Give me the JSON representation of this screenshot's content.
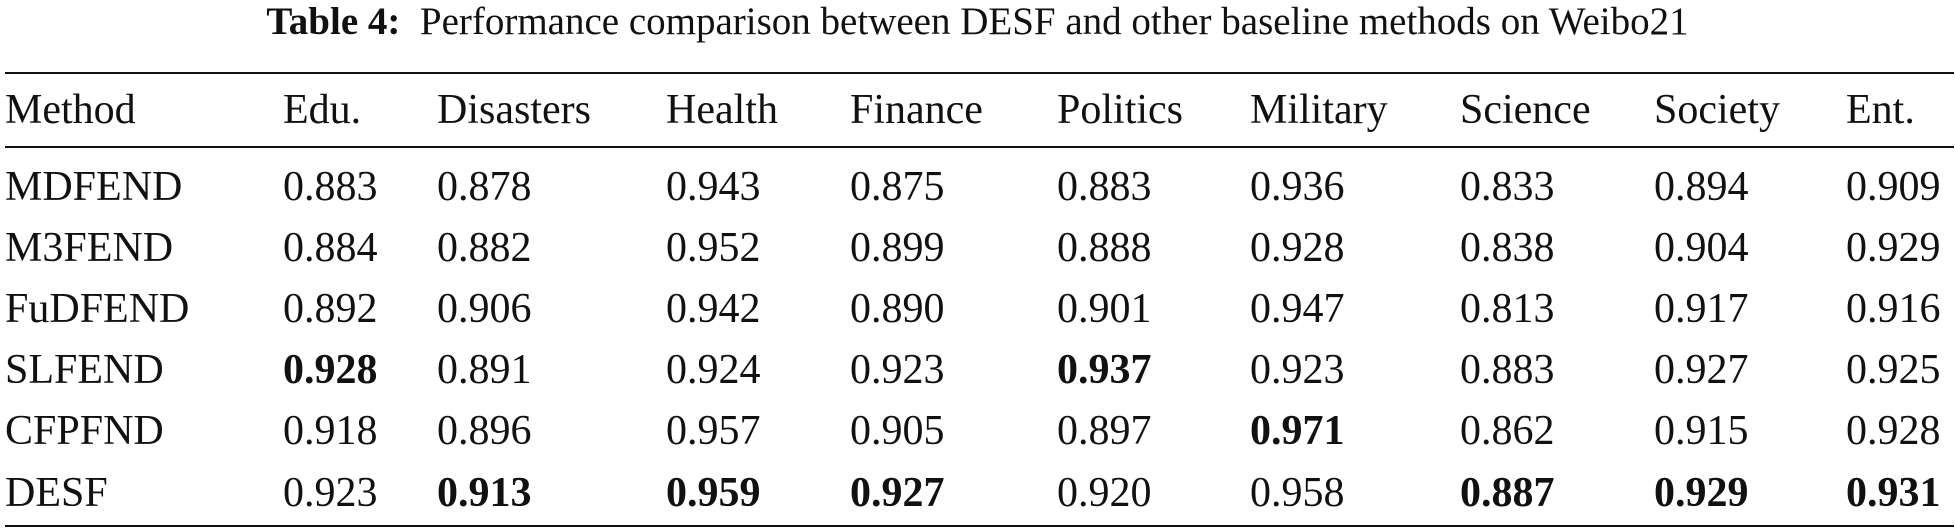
{
  "caption": {
    "label": "Table 4:",
    "text": "Performance comparison between DESF and other baseline methods on Weibo21"
  },
  "table": {
    "headers": [
      "Method",
      "Edu.",
      "Disasters",
      "Health",
      "Finance",
      "Politics",
      "Military",
      "Science",
      "Society",
      "Ent."
    ],
    "rows": [
      {
        "method": "MDFEND",
        "values": [
          "0.883",
          "0.878",
          "0.943",
          "0.875",
          "0.883",
          "0.936",
          "0.833",
          "0.894",
          "0.909"
        ],
        "bold": []
      },
      {
        "method": "M3FEND",
        "values": [
          "0.884",
          "0.882",
          "0.952",
          "0.899",
          "0.888",
          "0.928",
          "0.838",
          "0.904",
          "0.929"
        ],
        "bold": []
      },
      {
        "method": "FuDFEND",
        "values": [
          "0.892",
          "0.906",
          "0.942",
          "0.890",
          "0.901",
          "0.947",
          "0.813",
          "0.917",
          "0.916"
        ],
        "bold": []
      },
      {
        "method": "SLFEND",
        "values": [
          "0.928",
          "0.891",
          "0.924",
          "0.923",
          "0.937",
          "0.923",
          "0.883",
          "0.927",
          "0.925"
        ],
        "bold": [
          0,
          4
        ]
      },
      {
        "method": "CFPFND",
        "values": [
          "0.918",
          "0.896",
          "0.957",
          "0.905",
          "0.897",
          "0.971",
          "0.862",
          "0.915",
          "0.928"
        ],
        "bold": [
          5
        ]
      },
      {
        "method": "DESF",
        "values": [
          "0.923",
          "0.913",
          "0.959",
          "0.927",
          "0.920",
          "0.958",
          "0.887",
          "0.929",
          "0.931"
        ],
        "bold": [
          1,
          2,
          3,
          6,
          7,
          8
        ]
      }
    ]
  }
}
